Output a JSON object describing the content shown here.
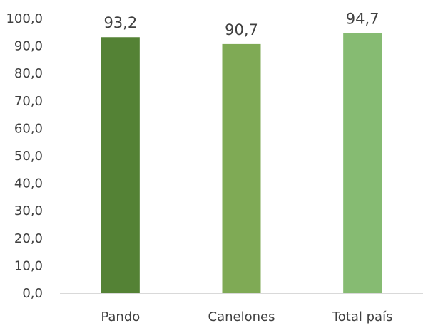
{
  "chart_data": {
    "type": "bar",
    "title": "",
    "xlabel": "",
    "ylabel": "",
    "categories": [
      "Pando",
      "Canelones",
      "Total país"
    ],
    "values": [
      93.2,
      90.7,
      94.7
    ],
    "value_labels": [
      "93,2",
      "90,7",
      "94,7"
    ],
    "ylim": [
      0,
      100
    ],
    "y_ticks": [
      0,
      10,
      20,
      30,
      40,
      50,
      60,
      70,
      80,
      90,
      100
    ],
    "y_tick_labels": [
      "0,0",
      "10,0",
      "20,0",
      "30,0",
      "40,0",
      "50,0",
      "60,0",
      "70,0",
      "80,0",
      "90,0",
      "100,0"
    ],
    "bar_colors": [
      "#548235",
      "#7faa55",
      "#86bb72"
    ],
    "grid": false,
    "legend": "none"
  }
}
